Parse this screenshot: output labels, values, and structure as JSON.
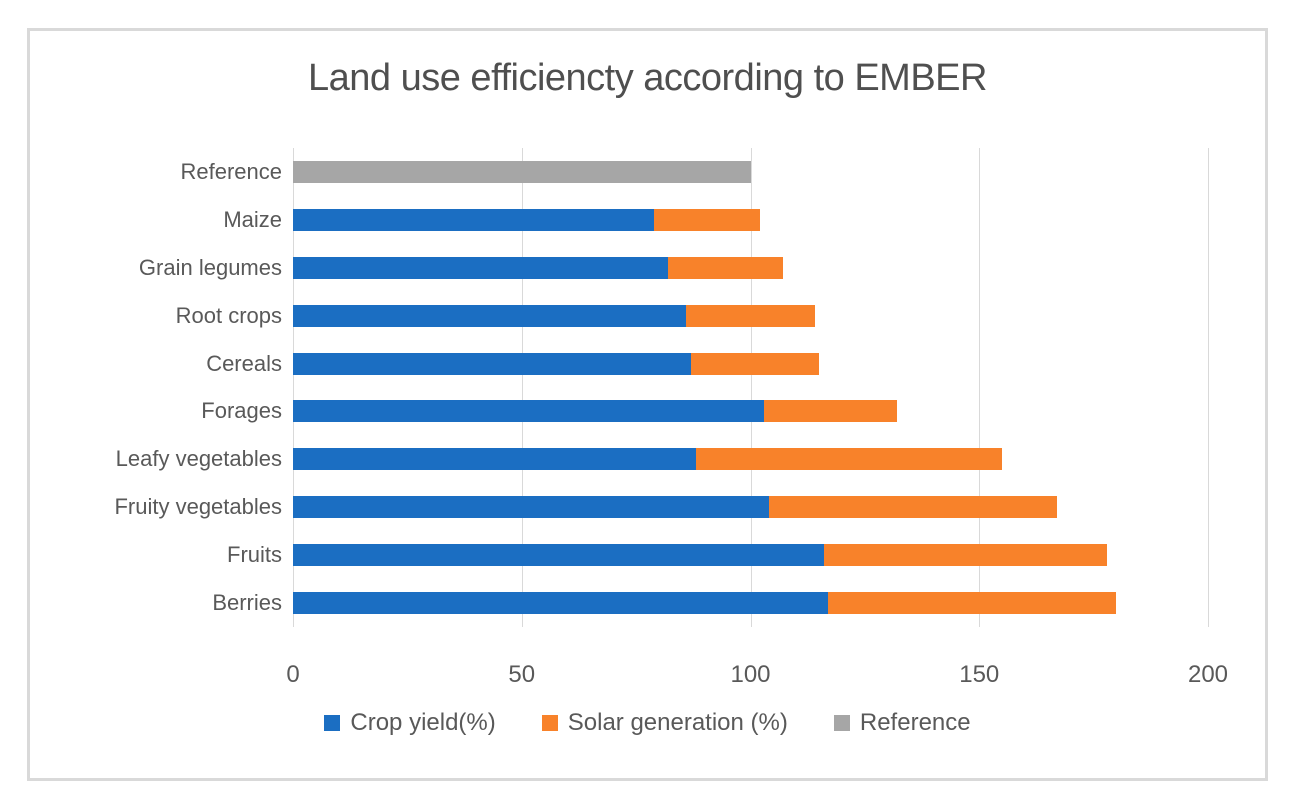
{
  "title": "Land use efficiencty according to EMBER",
  "colors": {
    "crop_yield": "#1B6EC2",
    "solar_generation": "#F8822A",
    "reference": "#A6A6A6",
    "gridline": "#D9D9D9",
    "text": "#595959",
    "title_text": "#4f4f4f",
    "frame_border": "#D9D9D9",
    "background": "#ffffff"
  },
  "chart_data": {
    "type": "bar",
    "orientation": "horizontal",
    "stacked": true,
    "title": "Land use efficiencty according to EMBER",
    "categories": [
      "Reference",
      "Maize",
      "Grain legumes",
      "Root crops",
      "Cereals",
      "Forages",
      "Leafy vegetables",
      "Fruity vegetables",
      "Fruits",
      "Berries"
    ],
    "series": [
      {
        "name": "Crop yield(%)",
        "color": "#1B6EC2",
        "values": [
          0,
          79,
          82,
          86,
          87,
          103,
          88,
          104,
          116,
          117
        ]
      },
      {
        "name": "Solar generation (%)",
        "color": "#F8822A",
        "values": [
          0,
          23,
          25,
          28,
          28,
          29,
          67,
          63,
          62,
          63
        ]
      },
      {
        "name": "Reference",
        "color": "#A6A6A6",
        "values": [
          100,
          0,
          0,
          0,
          0,
          0,
          0,
          0,
          0,
          0
        ]
      }
    ],
    "stacked_totals": [
      100,
      102,
      107,
      114,
      115,
      132,
      155,
      167,
      178,
      180
    ],
    "xlabel": "",
    "ylabel": "",
    "xlim": [
      0,
      200
    ],
    "xticks": [
      0,
      50,
      100,
      150,
      200
    ],
    "grid": "vertical",
    "legend_position": "bottom"
  }
}
